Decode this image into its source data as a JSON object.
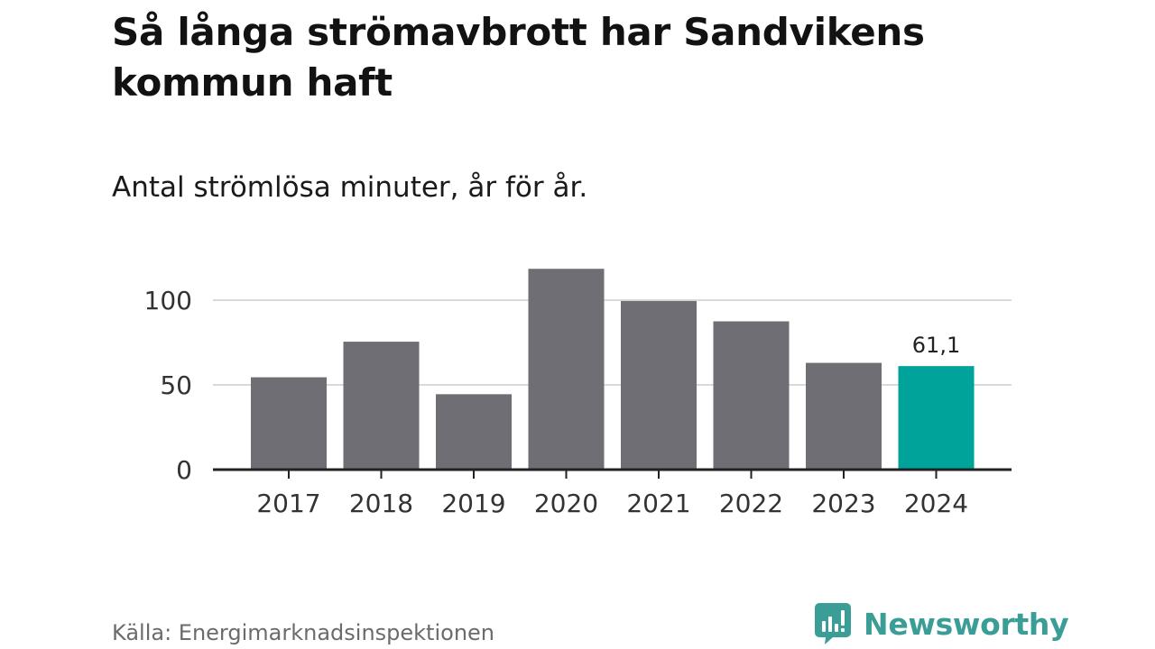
{
  "header": {
    "title": "Så långa strömavbrott har Sandvikens kommun haft",
    "subtitle": "Antal strömlösa minuter, år för år."
  },
  "chart_data": {
    "type": "bar",
    "title": "Så långa strömavbrott har Sandvikens kommun haft",
    "subtitle": "Antal strömlösa minuter, år för år.",
    "xlabel": "",
    "ylabel": "",
    "categories": [
      "2017",
      "2018",
      "2019",
      "2020",
      "2021",
      "2022",
      "2023",
      "2024"
    ],
    "values": [
      54.5,
      75.5,
      44.5,
      118.5,
      99.5,
      87.5,
      63,
      61.1
    ],
    "ylim": [
      0,
      120
    ],
    "yticks": [
      0,
      50,
      100
    ],
    "ytick_labels": [
      "0",
      "50",
      "100"
    ],
    "grid": true,
    "highlight_index": 7,
    "data_labels": [
      {
        "index": 7,
        "text": "61,1"
      }
    ],
    "colors": {
      "bar": "#6f6e74",
      "highlight": "#00a39a",
      "grid": "#d9d9d9",
      "axis": "#222222"
    }
  },
  "footer": {
    "source": "Källa: Energimarknadsinspektionen",
    "brand_name": "Newsworthy",
    "brand_icon": "newsworthy-logo-icon",
    "brand_color": "#3a9e97"
  }
}
